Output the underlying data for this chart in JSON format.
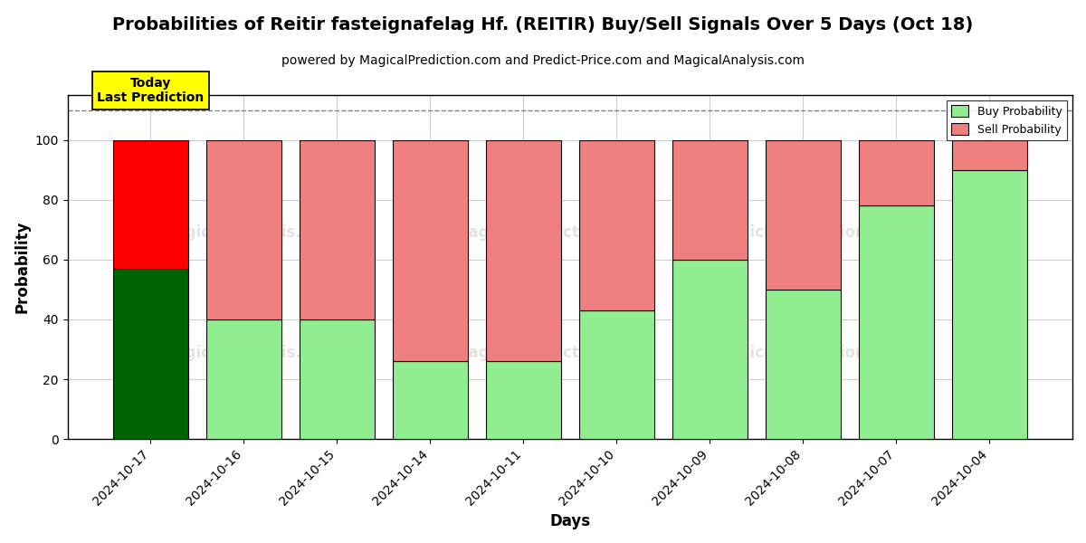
{
  "title": "Probabilities of Reitir fasteignafelag Hf. (REITIR) Buy/Sell Signals Over 5 Days (Oct 18)",
  "subtitle": "powered by MagicalPrediction.com and Predict-Price.com and MagicalAnalysis.com",
  "xlabel": "Days",
  "ylabel": "Probability",
  "dates": [
    "2024-10-17",
    "2024-10-16",
    "2024-10-15",
    "2024-10-14",
    "2024-10-11",
    "2024-10-10",
    "2024-10-09",
    "2024-10-08",
    "2024-10-07",
    "2024-10-04"
  ],
  "buy_probs": [
    57,
    40,
    40,
    26,
    26,
    43,
    60,
    50,
    78,
    90
  ],
  "sell_probs": [
    43,
    60,
    60,
    74,
    74,
    57,
    40,
    50,
    22,
    10
  ],
  "today_buy_color": "#006400",
  "today_sell_color": "#FF0000",
  "buy_color": "#90EE90",
  "sell_color": "#F08080",
  "today_label_bg": "#FFFF00",
  "today_label_text": "Today\nLast Prediction",
  "legend_buy": "Buy Probability",
  "legend_sell": "Sell Probability",
  "ylim": [
    0,
    115
  ],
  "yticks": [
    0,
    20,
    40,
    60,
    80,
    100
  ],
  "dashed_line_y": 110,
  "background_color": "#ffffff",
  "grid_color": "#cccccc",
  "bar_width": 0.8
}
